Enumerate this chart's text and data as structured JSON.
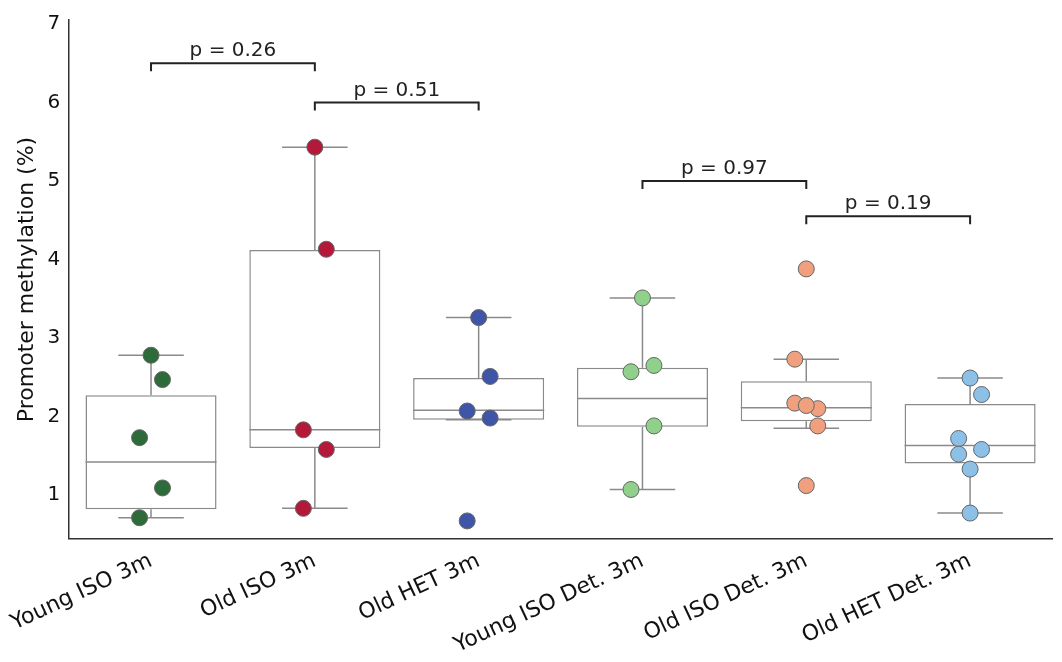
{
  "chart_data": {
    "type": "box",
    "ylabel": "Promoter methylation (%)",
    "categories": [
      "Young ISO 3m",
      "Old ISO 3m",
      "Old HET 3m",
      "Young ISO Det. 3m",
      "Old ISO Det. 3m",
      "Old HET Det. 3m"
    ],
    "boxes": [
      {
        "low": 0.71,
        "q1": 0.82,
        "median": 1.42,
        "q3": 2.27,
        "high": 2.78
      },
      {
        "low": 0.83,
        "q1": 1.6,
        "median": 1.83,
        "q3": 4.12,
        "high": 5.43
      },
      {
        "low": 1.96,
        "q1": 1.96,
        "median": 2.08,
        "q3": 2.49,
        "high": 3.26
      },
      {
        "low": 1.07,
        "q1": 1.87,
        "median": 2.23,
        "q3": 2.62,
        "high": 3.51
      },
      {
        "low": 1.85,
        "q1": 1.94,
        "median": 2.11,
        "q3": 2.45,
        "high": 2.73
      },
      {
        "low": 0.77,
        "q1": 1.4,
        "median": 1.63,
        "q3": 2.16,
        "high": 2.49
      }
    ],
    "series": [
      {
        "type": "scatter",
        "color": "#2e6b3a",
        "x": [
          "Young ISO 3m",
          "Young ISO 3m",
          "Young ISO 3m",
          "Young ISO 3m",
          "Young ISO 3m"
        ],
        "values": [
          2.78,
          2.47,
          1.73,
          1.09,
          0.71
        ]
      },
      {
        "type": "scatter",
        "color": "#b5193a",
        "x": [
          "Old ISO 3m",
          "Old ISO 3m",
          "Old ISO 3m",
          "Old ISO 3m",
          "Old ISO 3m"
        ],
        "values": [
          5.43,
          4.13,
          1.83,
          1.58,
          0.83
        ]
      },
      {
        "type": "scatter",
        "color": "#3f55a8",
        "x": [
          "Old HET 3m",
          "Old HET 3m",
          "Old HET 3m",
          "Old HET 3m",
          "Old HET 3m"
        ],
        "values": [
          3.26,
          2.51,
          2.07,
          1.98,
          0.67
        ]
      },
      {
        "type": "scatter",
        "color": "#8fd18a",
        "x": [
          "Young ISO Det. 3m",
          "Young ISO Det. 3m",
          "Young ISO Det. 3m",
          "Young ISO Det. 3m",
          "Young ISO Det. 3m"
        ],
        "values": [
          3.51,
          2.65,
          2.57,
          1.88,
          1.07
        ]
      },
      {
        "type": "scatter",
        "color": "#f0a07e",
        "x": [
          "Old ISO Det. 3m",
          "Old ISO Det. 3m",
          "Old ISO Det. 3m",
          "Old ISO Det. 3m",
          "Old ISO Det. 3m",
          "Old ISO Det. 3m",
          "Old ISO Det. 3m"
        ],
        "values": [
          3.88,
          2.1,
          2.17,
          1.88,
          2.73,
          2.14,
          1.12
        ]
      },
      {
        "type": "scatter",
        "color": "#8cc0e6",
        "x": [
          "Old HET Det. 3m",
          "Old HET Det. 3m",
          "Old HET Det. 3m",
          "Old HET Det. 3m",
          "Old HET Det. 3m",
          "Old HET Det. 3m",
          "Old HET Det. 3m"
        ],
        "values": [
          2.49,
          2.28,
          1.72,
          1.58,
          1.52,
          1.33,
          0.77
        ]
      }
    ],
    "ylim": [
      0.44,
      7.05
    ],
    "yticks": [
      1,
      2,
      3,
      4,
      5,
      6,
      7
    ],
    "grid": false,
    "legend": false,
    "marker": "circle",
    "annotations": [
      "p = 0.26",
      "p = 0.51",
      "p = 0.97",
      "p = 0.19"
    ]
  }
}
